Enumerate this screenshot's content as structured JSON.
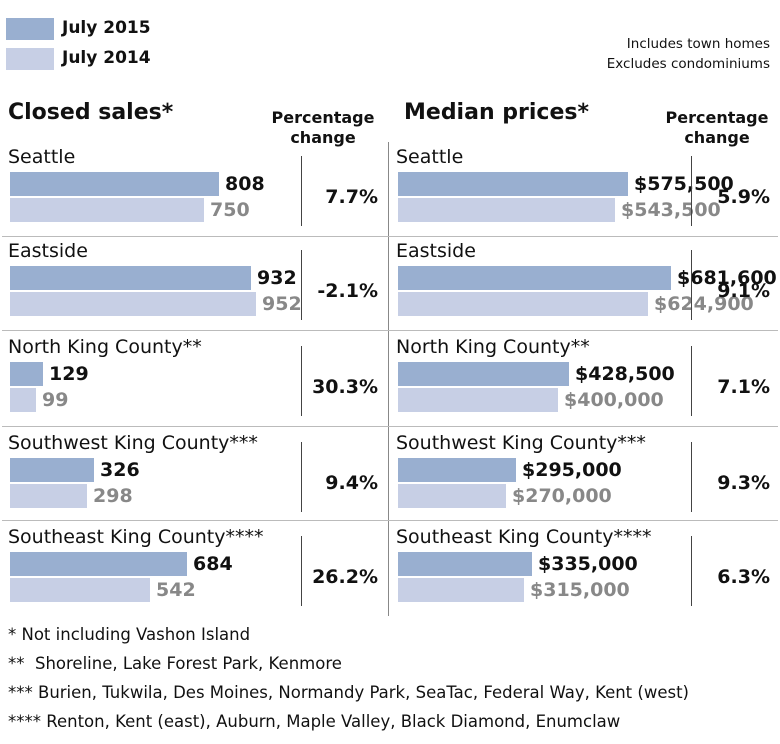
{
  "legend": {
    "current": {
      "label": "July 2015",
      "color": "#99afd0"
    },
    "previous": {
      "label": "July 2014",
      "color": "#c7cfe5"
    }
  },
  "notes": [
    "Includes town homes",
    "Excludes condominiums"
  ],
  "pct_header": [
    "Percentage",
    "change"
  ],
  "chart_data": [
    {
      "type": "bar",
      "title": "Closed sales*",
      "categories": [
        "Seattle",
        "Eastside",
        "North King County**",
        "Southwest King County***",
        "Southeast King County****"
      ],
      "series": [
        {
          "name": "July 2015",
          "values": [
            808,
            932,
            129,
            326,
            684
          ],
          "labels": [
            "808",
            "932",
            "129",
            "326",
            "684"
          ]
        },
        {
          "name": "July 2014",
          "values": [
            750,
            952,
            99,
            298,
            542
          ],
          "labels": [
            "750",
            "952",
            "99",
            "298",
            "542"
          ]
        }
      ],
      "pct_change": [
        "7.7%",
        "-2.1%",
        "30.3%",
        "9.4%",
        "26.2%"
      ]
    },
    {
      "type": "bar",
      "title": "Median prices*",
      "categories": [
        "Seattle",
        "Eastside",
        "North King County**",
        "Southwest King County***",
        "Southeast King County****"
      ],
      "series": [
        {
          "name": "July 2015",
          "values": [
            575500,
            681600,
            428500,
            295000,
            335000
          ],
          "labels": [
            "$575,500",
            "$681,600",
            "$428,500",
            "$295,000",
            "$335,000"
          ]
        },
        {
          "name": "July 2014",
          "values": [
            543500,
            624900,
            400000,
            270000,
            315000
          ],
          "labels": [
            "$543,500",
            "$624,900",
            "$400,000",
            "$270,000",
            "$315,000"
          ]
        }
      ],
      "pct_change": [
        "5.9%",
        "9.1%",
        "7.1%",
        "9.3%",
        "6.3%"
      ]
    }
  ],
  "footnotes": [
    "* Not including Vashon Island",
    "**  Shoreline, Lake Forest Park, Kenmore",
    "*** Burien, Tukwila, Des Moines, Normandy Park, SeaTac, Federal Way, Kent (west)",
    "**** Renton, Kent (east), Auburn, Maple Valley, Black Diamond, Enumclaw"
  ]
}
